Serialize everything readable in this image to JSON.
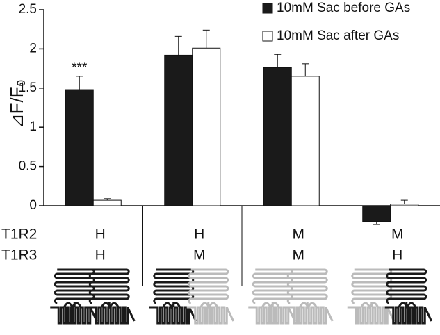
{
  "chart_data": {
    "type": "bar",
    "y_label": "⊿F/F",
    "y_label_subscript": "0",
    "categories": [
      null,
      null,
      null,
      null
    ],
    "series": [
      {
        "name": "10mM Sac before GAs",
        "color": "#1a1a1a",
        "values": [
          1.48,
          1.92,
          1.76,
          -0.2
        ],
        "errors": [
          0.17,
          0.24,
          0.17,
          0.04
        ]
      },
      {
        "name": "10mM Sac after GAs",
        "color": "#ffffff",
        "values": [
          0.07,
          2.01,
          1.65,
          0.02
        ],
        "errors": [
          0.02,
          0.23,
          0.16,
          0.05
        ]
      }
    ],
    "ylim": [
      0,
      2.5
    ],
    "yticks": [
      0,
      0.5,
      1,
      1.5,
      2,
      2.5
    ],
    "annotation": "***",
    "table": {
      "row_labels": [
        "T1R2",
        "T1R3"
      ],
      "rows": [
        [
          "H",
          "H",
          "M",
          "M"
        ],
        [
          "H",
          "M",
          "M",
          "H"
        ]
      ]
    }
  }
}
